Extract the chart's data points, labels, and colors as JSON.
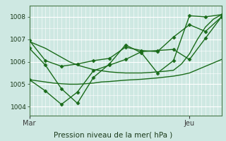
{
  "title": "Pression niveau de la mer( hPa )",
  "xlabel_left": "Mar",
  "xlabel_right": "Jeu",
  "ylabel_ticks": [
    1004,
    1005,
    1006,
    1007,
    1008
  ],
  "ylim": [
    1003.6,
    1008.5
  ],
  "xlim": [
    0,
    48
  ],
  "bg_color": "#cee8e2",
  "grid_major_color": "#ffffff",
  "grid_minor_color": "#ffffff",
  "series": [
    {
      "x": [
        0,
        2,
        4,
        6,
        8,
        10,
        12,
        14,
        16,
        18,
        20,
        22,
        24,
        26,
        28,
        30,
        32,
        34,
        36,
        38,
        40,
        42,
        44,
        46,
        48
      ],
      "y": [
        1006.9,
        1006.75,
        1006.6,
        1006.4,
        1006.2,
        1006.0,
        1005.85,
        1005.75,
        1005.65,
        1005.6,
        1005.55,
        1005.52,
        1005.5,
        1005.5,
        1005.5,
        1005.52,
        1005.55,
        1005.58,
        1005.62,
        1005.9,
        1006.35,
        1007.0,
        1007.55,
        1007.9,
        1008.1
      ],
      "marker": null,
      "color": "#1a6b1a",
      "lw": 1.0
    },
    {
      "x": [
        0,
        2,
        4,
        6,
        8,
        10,
        12,
        14,
        16,
        18,
        20,
        22,
        24,
        26,
        28,
        30,
        32,
        34,
        36,
        38,
        40,
        42,
        44,
        46,
        48
      ],
      "y": [
        1005.2,
        1005.15,
        1005.1,
        1005.05,
        1005.02,
        1005.0,
        1005.0,
        1005.02,
        1005.05,
        1005.1,
        1005.12,
        1005.15,
        1005.18,
        1005.2,
        1005.22,
        1005.25,
        1005.28,
        1005.32,
        1005.36,
        1005.42,
        1005.5,
        1005.65,
        1005.8,
        1005.95,
        1006.1
      ],
      "marker": null,
      "color": "#1a6b1a",
      "lw": 1.0
    },
    {
      "x": [
        0,
        4,
        8,
        12,
        16,
        20,
        24,
        28,
        32,
        36,
        40,
        44,
        48
      ],
      "y": [
        1006.95,
        1006.05,
        1005.8,
        1005.9,
        1006.05,
        1006.15,
        1006.65,
        1006.5,
        1006.45,
        1007.1,
        1007.65,
        1007.35,
        1008.0
      ],
      "marker": "D",
      "color": "#1a6b1a",
      "lw": 1.0
    },
    {
      "x": [
        0,
        4,
        8,
        12,
        16,
        20,
        24,
        28,
        32,
        36,
        40,
        44,
        48
      ],
      "y": [
        1006.6,
        1005.85,
        1004.8,
        1004.15,
        1005.3,
        1005.9,
        1006.75,
        1006.4,
        1005.5,
        1006.05,
        1008.05,
        1008.0,
        1008.1
      ],
      "marker": "D",
      "color": "#1a6b1a",
      "lw": 1.0
    },
    {
      "x": [
        0,
        4,
        8,
        12,
        16,
        20,
        24,
        28,
        32,
        36,
        40,
        44,
        48
      ],
      "y": [
        1005.2,
        1004.7,
        1004.1,
        1004.65,
        1005.6,
        1005.85,
        1006.1,
        1006.45,
        1006.5,
        1006.55,
        1006.1,
        1007.05,
        1008.0
      ],
      "marker": "D",
      "color": "#1a6b1a",
      "lw": 1.0
    }
  ]
}
